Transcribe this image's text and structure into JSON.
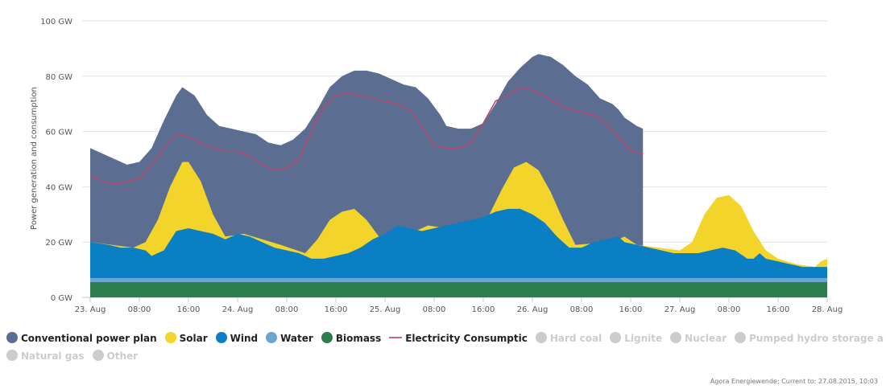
{
  "chart_data": {
    "type": "area",
    "ylabel": "Power generation and consumption",
    "y_ticks": [
      "0 GW",
      "20 GW",
      "40 GW",
      "60 GW",
      "80 GW",
      "100 GW"
    ],
    "ylim": [
      0,
      100
    ],
    "x_ticks": [
      "23. Aug",
      "08:00",
      "16:00",
      "24. Aug",
      "08:00",
      "16:00",
      "25. Aug",
      "08:00",
      "16:00",
      "26. Aug",
      "08:00",
      "16:00",
      "27. Aug",
      "08:00",
      "16:00",
      "28. Aug"
    ],
    "x_unit": "hours since 23. Aug 00:00",
    "xlim": [
      0,
      120
    ],
    "grid": true,
    "stacking": "cumulative top edges listed per series",
    "series": [
      {
        "name": "Conventional power plants",
        "color": "#5b6e91",
        "top": [
          [
            0,
            54
          ],
          [
            2,
            52
          ],
          [
            4,
            50
          ],
          [
            6,
            48
          ],
          [
            8,
            49
          ],
          [
            10,
            54
          ],
          [
            12,
            64
          ],
          [
            14,
            73
          ],
          [
            15,
            76
          ],
          [
            17,
            73
          ],
          [
            19,
            66
          ],
          [
            21,
            62
          ],
          [
            23,
            61
          ],
          [
            25,
            60
          ],
          [
            27,
            59
          ],
          [
            29,
            56
          ],
          [
            31,
            55
          ],
          [
            33,
            57
          ],
          [
            35,
            61
          ],
          [
            37,
            68
          ],
          [
            39,
            76
          ],
          [
            41,
            80
          ],
          [
            43,
            82
          ],
          [
            45,
            82
          ],
          [
            47,
            81
          ],
          [
            49,
            79
          ],
          [
            51,
            77
          ],
          [
            53,
            76
          ],
          [
            55,
            72
          ],
          [
            57,
            66
          ],
          [
            58,
            62
          ],
          [
            60,
            61
          ],
          [
            62,
            61
          ],
          [
            64,
            63
          ],
          [
            66,
            70
          ],
          [
            68,
            78
          ],
          [
            70,
            83
          ],
          [
            72,
            87
          ],
          [
            73,
            88
          ],
          [
            75,
            87
          ],
          [
            77,
            84
          ],
          [
            79,
            80
          ],
          [
            81,
            77
          ],
          [
            83,
            72
          ],
          [
            85,
            70
          ],
          [
            86,
            68
          ],
          [
            87,
            65
          ],
          [
            89,
            62
          ],
          [
            90,
            61
          ]
        ]
      },
      {
        "name": "Electricity Consumption",
        "color": "#b5466e",
        "kind": "line",
        "values": [
          [
            0,
            44
          ],
          [
            2,
            42
          ],
          [
            4,
            41
          ],
          [
            6,
            42
          ],
          [
            8,
            43
          ],
          [
            10,
            48
          ],
          [
            12,
            54
          ],
          [
            14,
            59
          ],
          [
            16,
            58
          ],
          [
            18,
            56
          ],
          [
            20,
            54
          ],
          [
            22,
            53
          ],
          [
            24,
            53
          ],
          [
            26,
            51
          ],
          [
            28,
            48
          ],
          [
            30,
            46
          ],
          [
            32,
            47
          ],
          [
            34,
            50
          ],
          [
            36,
            60
          ],
          [
            38,
            69
          ],
          [
            40,
            73
          ],
          [
            42,
            74
          ],
          [
            44,
            73
          ],
          [
            46,
            72
          ],
          [
            48,
            71
          ],
          [
            50,
            70
          ],
          [
            52,
            68
          ],
          [
            54,
            62
          ],
          [
            56,
            55
          ],
          [
            58,
            54
          ],
          [
            60,
            54
          ],
          [
            62,
            56
          ],
          [
            64,
            63
          ],
          [
            66,
            71
          ],
          [
            68,
            73
          ],
          [
            70,
            76
          ],
          [
            72,
            75
          ],
          [
            74,
            73
          ],
          [
            76,
            70
          ],
          [
            78,
            68
          ],
          [
            80,
            67
          ],
          [
            82,
            66
          ],
          [
            84,
            63
          ],
          [
            86,
            58
          ],
          [
            88,
            53
          ],
          [
            90,
            52
          ]
        ]
      },
      {
        "name": "Solar",
        "color": "#f2d42a",
        "top": [
          [
            0,
            20
          ],
          [
            7,
            18
          ],
          [
            9,
            20
          ],
          [
            11,
            28
          ],
          [
            13,
            40
          ],
          [
            15,
            49
          ],
          [
            16,
            49
          ],
          [
            18,
            42
          ],
          [
            20,
            30
          ],
          [
            22,
            22
          ],
          [
            25,
            23
          ],
          [
            31,
            19
          ],
          [
            35,
            16
          ],
          [
            37,
            21
          ],
          [
            39,
            28
          ],
          [
            41,
            31
          ],
          [
            43,
            32
          ],
          [
            45,
            28
          ],
          [
            47,
            22
          ],
          [
            49,
            20
          ],
          [
            55,
            26
          ],
          [
            61,
            24
          ],
          [
            63,
            26
          ],
          [
            65,
            30
          ],
          [
            67,
            39
          ],
          [
            69,
            47
          ],
          [
            71,
            49
          ],
          [
            73,
            46
          ],
          [
            75,
            38
          ],
          [
            77,
            28
          ],
          [
            79,
            19
          ],
          [
            85,
            20
          ],
          [
            87,
            22
          ],
          [
            89,
            19
          ],
          [
            96,
            17
          ],
          [
            98,
            20
          ],
          [
            100,
            30
          ],
          [
            102,
            36
          ],
          [
            104,
            37
          ],
          [
            106,
            33
          ],
          [
            108,
            24
          ],
          [
            110,
            17
          ],
          [
            112,
            14
          ],
          [
            115,
            12
          ],
          [
            118,
            11
          ],
          [
            119,
            13
          ],
          [
            120,
            14
          ]
        ]
      },
      {
        "name": "Wind",
        "color": "#0b7fc3",
        "top": [
          [
            0,
            20
          ],
          [
            3,
            19
          ],
          [
            5,
            18
          ],
          [
            7,
            18
          ],
          [
            9,
            17
          ],
          [
            10,
            15
          ],
          [
            12,
            17
          ],
          [
            14,
            24
          ],
          [
            16,
            25
          ],
          [
            18,
            24
          ],
          [
            20,
            23
          ],
          [
            22,
            21
          ],
          [
            24,
            23
          ],
          [
            26,
            22
          ],
          [
            28,
            20
          ],
          [
            30,
            18
          ],
          [
            32,
            17
          ],
          [
            34,
            16
          ],
          [
            36,
            14
          ],
          [
            38,
            14
          ],
          [
            40,
            15
          ],
          [
            42,
            16
          ],
          [
            44,
            18
          ],
          [
            46,
            21
          ],
          [
            48,
            23
          ],
          [
            50,
            26
          ],
          [
            52,
            25
          ],
          [
            54,
            24
          ],
          [
            56,
            25
          ],
          [
            58,
            26
          ],
          [
            60,
            27
          ],
          [
            62,
            28
          ],
          [
            64,
            29
          ],
          [
            66,
            31
          ],
          [
            68,
            32
          ],
          [
            70,
            32
          ],
          [
            72,
            30
          ],
          [
            74,
            27
          ],
          [
            76,
            22
          ],
          [
            78,
            18
          ],
          [
            80,
            18
          ],
          [
            82,
            20
          ],
          [
            84,
            21
          ],
          [
            86,
            22
          ],
          [
            87,
            20
          ],
          [
            89,
            19
          ],
          [
            91,
            18
          ],
          [
            93,
            17
          ],
          [
            95,
            16
          ],
          [
            97,
            16
          ],
          [
            99,
            16
          ],
          [
            101,
            17
          ],
          [
            103,
            18
          ],
          [
            105,
            17
          ],
          [
            107,
            14
          ],
          [
            108,
            14
          ],
          [
            109,
            16
          ],
          [
            110,
            14
          ],
          [
            112,
            13
          ],
          [
            114,
            12
          ],
          [
            116,
            11
          ],
          [
            118,
            11
          ],
          [
            120,
            11
          ]
        ]
      },
      {
        "name": "Water",
        "color": "#69a7d1",
        "constant": 7
      },
      {
        "name": "Biomass",
        "color": "#2e7d4f",
        "constant": 5.5
      }
    ],
    "credit": "Agora Energiewende; Current to: 27.08.2015, 10:03"
  },
  "legend": {
    "row1": [
      {
        "label": "Conventional power plan",
        "color": "#5b6e91",
        "on": true
      },
      {
        "label": "Solar",
        "color": "#f2d42a",
        "on": true
      },
      {
        "label": "Wind",
        "color": "#0b7fc3",
        "on": true
      },
      {
        "label": "Water",
        "color": "#69a7d1",
        "on": true
      },
      {
        "label": "Biomass",
        "color": "#2e7d4f",
        "on": true
      },
      {
        "label": "Electricity Consumptic",
        "color": "#d45c93",
        "on": true,
        "line": true
      },
      {
        "label": "Hard coal",
        "color": "#cccccc",
        "on": false
      },
      {
        "label": "Lignite",
        "color": "#cccccc",
        "on": false
      },
      {
        "label": "Nuclear",
        "color": "#cccccc",
        "on": false
      },
      {
        "label": "Pumped hydro storage and storage wate",
        "color": "#cccccc",
        "on": false
      }
    ],
    "row2": [
      {
        "label": "Natural gas",
        "color": "#cccccc",
        "on": false
      },
      {
        "label": "Other",
        "color": "#cccccc",
        "on": false
      }
    ]
  }
}
